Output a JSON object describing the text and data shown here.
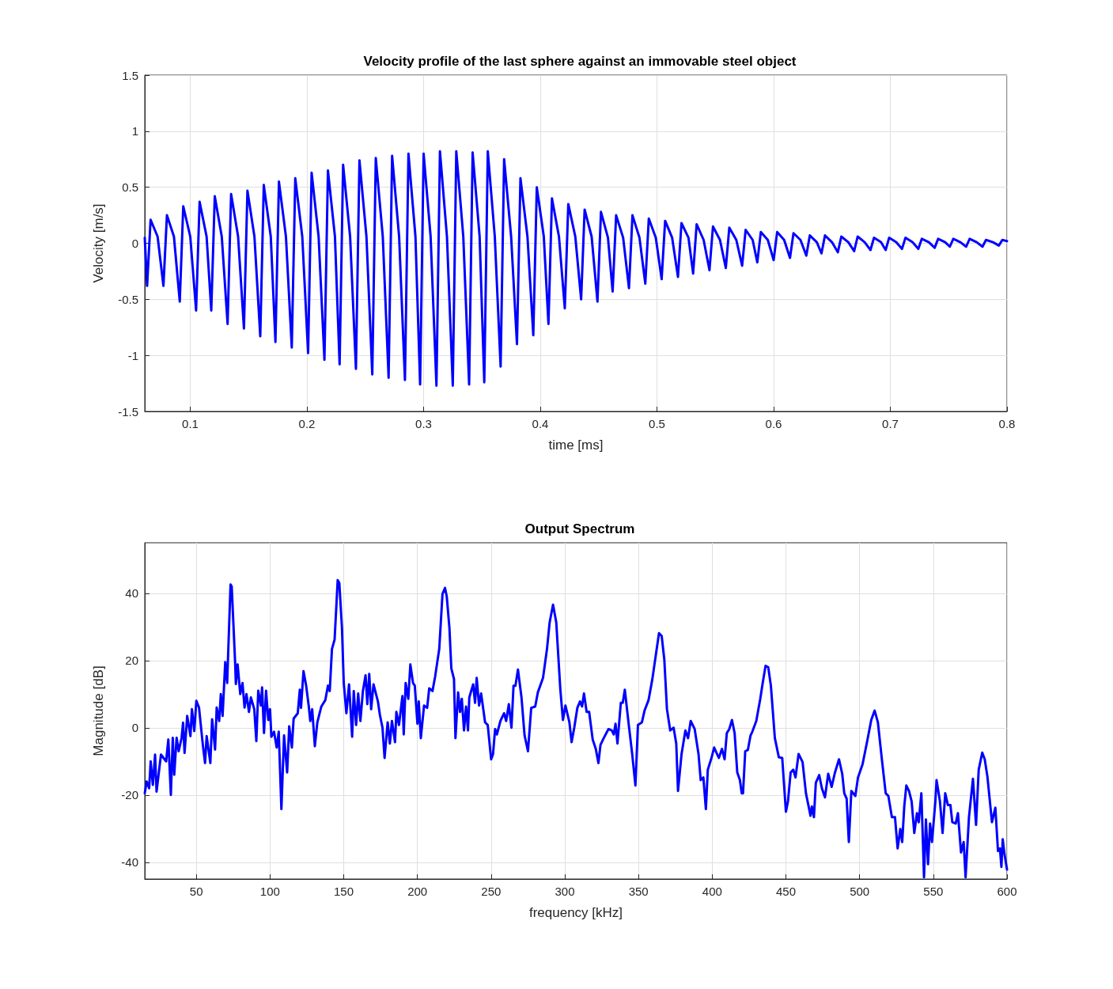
{
  "chart_data": [
    {
      "type": "line",
      "title": "Velocity profile of the last sphere against an immovable steel object",
      "xlabel": "time [ms]",
      "ylabel": "Velocity [m/s]",
      "x": [
        0.061,
        0.063,
        0.066,
        0.072,
        0.077,
        0.08,
        0.086,
        0.091,
        0.094,
        0.1,
        0.105,
        0.108,
        0.114,
        0.118,
        0.121,
        0.127,
        0.132,
        0.135,
        0.141,
        0.146,
        0.149,
        0.155,
        0.16,
        0.163,
        0.169,
        0.173,
        0.176,
        0.182,
        0.187,
        0.19,
        0.196,
        0.201,
        0.204,
        0.21,
        0.215,
        0.218,
        0.224,
        0.228,
        0.231,
        0.237,
        0.242,
        0.245,
        0.251,
        0.256,
        0.259,
        0.265,
        0.27,
        0.273,
        0.279,
        0.284,
        0.287,
        0.293,
        0.297,
        0.3,
        0.306,
        0.311,
        0.314,
        0.32,
        0.325,
        0.328,
        0.334,
        0.339,
        0.342,
        0.348,
        0.352,
        0.355,
        0.361,
        0.366,
        0.369,
        0.375,
        0.38,
        0.383,
        0.389,
        0.394,
        0.397,
        0.403,
        0.407,
        0.41,
        0.416,
        0.421,
        0.424,
        0.43,
        0.435,
        0.438,
        0.444,
        0.449,
        0.452,
        0.458,
        0.462,
        0.465,
        0.471,
        0.476,
        0.479,
        0.485,
        0.49,
        0.493,
        0.499,
        0.504,
        0.507,
        0.513,
        0.518,
        0.521,
        0.527,
        0.531,
        0.534,
        0.54,
        0.545,
        0.548,
        0.554,
        0.559,
        0.562,
        0.568,
        0.573,
        0.576,
        0.582,
        0.586,
        0.589,
        0.595,
        0.6,
        0.603,
        0.609,
        0.614,
        0.617,
        0.623,
        0.628,
        0.631,
        0.637,
        0.641,
        0.644,
        0.65,
        0.655,
        0.658,
        0.664,
        0.669,
        0.672,
        0.678,
        0.683,
        0.686,
        0.692,
        0.696,
        0.699,
        0.705,
        0.71,
        0.713,
        0.719,
        0.724,
        0.727,
        0.733,
        0.738,
        0.741,
        0.747,
        0.751,
        0.754,
        0.76,
        0.765,
        0.768,
        0.774,
        0.779,
        0.782,
        0.788,
        0.793,
        0.796,
        0.8
      ],
      "series": [
        {
          "color": "#0000ff",
          "values": [
            0.05,
            -0.38,
            0.21,
            0.06,
            -0.38,
            0.25,
            0.06,
            -0.52,
            0.33,
            0.06,
            -0.6,
            0.37,
            0.06,
            -0.6,
            0.42,
            0.06,
            -0.72,
            0.44,
            0.06,
            -0.76,
            0.47,
            0.06,
            -0.83,
            0.52,
            0.06,
            -0.88,
            0.55,
            0.06,
            -0.93,
            0.58,
            0.06,
            -0.98,
            0.63,
            0.06,
            -1.04,
            0.65,
            0.06,
            -1.08,
            0.7,
            0.06,
            -1.12,
            0.74,
            0.06,
            -1.17,
            0.76,
            0.06,
            -1.2,
            0.78,
            0.06,
            -1.22,
            0.8,
            0.06,
            -1.26,
            0.8,
            0.06,
            -1.27,
            0.82,
            0.06,
            -1.27,
            0.82,
            0.06,
            -1.26,
            0.81,
            0.06,
            -1.24,
            0.82,
            0.06,
            -1.1,
            0.75,
            0.06,
            -0.9,
            0.58,
            0.06,
            -0.82,
            0.5,
            0.06,
            -0.72,
            0.4,
            0.06,
            -0.58,
            0.35,
            0.06,
            -0.5,
            0.3,
            0.06,
            -0.52,
            0.28,
            0.05,
            -0.43,
            0.25,
            0.05,
            -0.4,
            0.25,
            0.05,
            -0.36,
            0.22,
            0.05,
            -0.32,
            0.2,
            0.05,
            -0.3,
            0.18,
            0.05,
            -0.27,
            0.17,
            0.03,
            -0.24,
            0.15,
            0.03,
            -0.22,
            0.14,
            0.03,
            -0.2,
            0.12,
            0.03,
            -0.17,
            0.1,
            0.03,
            -0.15,
            0.1,
            0.03,
            -0.13,
            0.09,
            0.03,
            -0.11,
            0.07,
            0.01,
            -0.09,
            0.07,
            0.01,
            -0.08,
            0.06,
            0.01,
            -0.07,
            0.06,
            0.01,
            -0.06,
            0.05,
            0.01,
            -0.06,
            0.05,
            0.01,
            -0.05,
            0.05,
            0.01,
            -0.05,
            0.04,
            0.01,
            -0.04,
            0.04,
            0.01,
            -0.03,
            0.04,
            0.01,
            -0.03,
            0.04,
            0.01,
            -0.03,
            0.03,
            0.01,
            -0.02,
            0.03,
            0.02
          ]
        }
      ],
      "xlim": [
        0.061,
        0.8
      ],
      "xticks": [
        0.1,
        0.2,
        0.3,
        0.4,
        0.5,
        0.6,
        0.7,
        0.8
      ],
      "ylim": [
        -1.5,
        1.5
      ],
      "yticks": [
        -1.5,
        -1,
        -0.5,
        0,
        0.5,
        1,
        1.5
      ],
      "grid": true,
      "marker": "none",
      "line_style": "solid"
    },
    {
      "type": "line",
      "title": "Output Spectrum",
      "xlabel": "frequency [kHz]",
      "ylabel": "Magnitude [dB]",
      "x": [
        15,
        16.3,
        18,
        19,
        20.5,
        22,
        23,
        26,
        29.5,
        31,
        32.7,
        34,
        35,
        36.6,
        38,
        40,
        41,
        42,
        43.8,
        46,
        47,
        48.6,
        50,
        51.8,
        54.5,
        55.9,
        57,
        59.5,
        60.7,
        62.7,
        63.8,
        65.5,
        66.6,
        67.8,
        69.6,
        70.9,
        73.2,
        74,
        76.3,
        76.8,
        78,
        79.8,
        81.3,
        82.7,
        84,
        85.7,
        87,
        89.3,
        90.7,
        92,
        93.8,
        94.6,
        95.9,
        97.3,
        98.8,
        100,
        100.9,
        102.7,
        104.5,
        105.9,
        107.7,
        109.5,
        111.6,
        113,
        114.8,
        116,
        118.8,
        120.2,
        121,
        122.7,
        124.5,
        126.3,
        127.3,
        128.6,
        130.4,
        132.1,
        134.8,
        137.5,
        139.3,
        140.5,
        142,
        143.8,
        145.9,
        147,
        148.8,
        150,
        151.8,
        153.6,
        155.7,
        156.8,
        158.4,
        159.8,
        161.3,
        163,
        164.8,
        166,
        167.3,
        168.6,
        170.2,
        173.2,
        174.5,
        176.3,
        177.7,
        179.8,
        181.3,
        182.7,
        184.8,
        185.7,
        187.5,
        189.8,
        190.7,
        192,
        193.8,
        195.2,
        197,
        198.2,
        200,
        200.9,
        202.3,
        204.5,
        206.6,
        208,
        210.2,
        212,
        214.8,
        217,
        218.7,
        219.9,
        221.7,
        223,
        224.8,
        225.8,
        227.6,
        228.9,
        230.1,
        231.6,
        233,
        234.3,
        235.2,
        237.8,
        239.1,
        240.2,
        241.8,
        243.2,
        245.9,
        247.7,
        250,
        251.3,
        252.7,
        253.9,
        256.3,
        258.8,
        260.2,
        262,
        263.8,
        265.2,
        266.5,
        268.2,
        270.6,
        272.7,
        275,
        277.2,
        279.9,
        281.7,
        285.2,
        287.9,
        289.7,
        292,
        294.2,
        296.9,
        298.7,
        300.4,
        303.1,
        304.6,
        306.4,
        308.5,
        310.3,
        311.7,
        313,
        314.8,
        316.5,
        318.9,
        321,
        322.8,
        324.2,
        326.4,
        329.6,
        331.8,
        333.2,
        334.4,
        335.7,
        338,
        339.3,
        340.7,
        343.4,
        345.7,
        347.9,
        349.6,
        352.3,
        354.1,
        356.8,
        359.4,
        362.1,
        363.9,
        365.7,
        367.5,
        369.3,
        371.5,
        373.8,
        375.6,
        376.8,
        379.2,
        381.8,
        383.6,
        385.4,
        388.1,
        390.7,
        392.2,
        394,
        395.7,
        397,
        399.5,
        401.3,
        404.5,
        406.6,
        408.4,
        409.9,
        411.6,
        413.4,
        415.2,
        417,
        418.8,
        420,
        420.9,
        422.4,
        424.2,
        426,
        427.2,
        429.9,
        432.6,
        434.4,
        436.2,
        438,
        439.8,
        442.5,
        445.2,
        447.5,
        450,
        451.4,
        453.2,
        455,
        456.5,
        458.6,
        461.3,
        463.6,
        466.7,
        467.6,
        469,
        470.3,
        472.6,
        474.4,
        476.5,
        478.7,
        481,
        483.3,
        486,
        488.2,
        489.6,
        491.2,
        492.7,
        494.4,
        497.1,
        498.9,
        502,
        505.2,
        507.9,
        510.2,
        512.4,
        515.1,
        517.7,
        519.5,
        521.9,
        524,
        525.8,
        527.6,
        528.9,
        530.3,
        531.7,
        533.5,
        535.3,
        537.1,
        538.9,
        540.1,
        541.9,
        543.7,
        545,
        546.4,
        547.8,
        549.1,
        551.4,
        552.2,
        554.5,
        556.3,
        558.1,
        559.9,
        561.6,
        562.9,
        565.2,
        566.7,
        568.8,
        570.6,
        571.9,
        574.2,
        576.9,
        579,
        580.8,
        583.2,
        584.9,
        586.7,
        589.8,
        592.1,
        593.9,
        595.2,
        596.2,
        597.1,
        598.4,
        600
      ],
      "series": [
        {
          "color": "#0000ff",
          "values": [
            -19.5,
            -16,
            -18,
            -10,
            -17,
            -8,
            -19,
            -8,
            -10,
            -3.5,
            -20,
            -3,
            -14,
            -3,
            -7,
            -3,
            1.5,
            -7.5,
            3.5,
            -2.5,
            5.5,
            -1,
            8,
            6,
            -5.5,
            -10.5,
            -2.5,
            -10.5,
            2.5,
            -6.5,
            6,
            2,
            10,
            3.5,
            19.5,
            13.3,
            42.6,
            42,
            19.5,
            13,
            18.8,
            10,
            13.3,
            6,
            10,
            4.7,
            9,
            5.5,
            -4,
            11,
            6.6,
            12,
            -1.6,
            11,
            2.3,
            5.5,
            -2.7,
            -1.2,
            -5.9,
            -1.2,
            -24.2,
            -2.3,
            -13.3,
            0.4,
            -5.9,
            2.7,
            4.3,
            11.3,
            5.9,
            16.8,
            12.5,
            6.3,
            2,
            5.5,
            -5.5,
            1.6,
            6.3,
            8.2,
            12.5,
            10.9,
            23.4,
            26.2,
            43.9,
            43,
            29.7,
            13.3,
            4.3,
            12.9,
            -2.7,
            10.9,
            0.8,
            10.2,
            2,
            10.9,
            15.6,
            7,
            16,
            5.5,
            12.9,
            7.8,
            3.9,
            0,
            -9,
            1.6,
            -4.7,
            2,
            -4.3,
            4.7,
            0.8,
            9.4,
            -2,
            13.3,
            8.6,
            18.8,
            13.3,
            12.5,
            1.2,
            7.8,
            -3.1,
            6.6,
            5.9,
            11.7,
            10.9,
            15.2,
            23.4,
            39.8,
            41.6,
            39,
            29.7,
            17.6,
            14.5,
            -3.1,
            10.5,
            4.7,
            8.6,
            -0.8,
            6.3,
            -0.8,
            9,
            12.9,
            7.4,
            14.8,
            6.6,
            10.2,
            1.6,
            0.8,
            -9.4,
            -7.8,
            -0.4,
            -2,
            2,
            4.3,
            2,
            7,
            0,
            12.5,
            12.5,
            17.3,
            9,
            -2.3,
            -7,
            5.9,
            6.3,
            10.5,
            14.8,
            23.4,
            31.3,
            36.6,
            31.3,
            11.7,
            2.3,
            6.6,
            1.6,
            -4.3,
            0,
            5.9,
            7.8,
            6.3,
            10.2,
            4.7,
            4.7,
            -3.5,
            -6.3,
            -10.5,
            -5.1,
            -3.1,
            -0.4,
            -0.8,
            -2,
            1.2,
            -4.7,
            7.4,
            7.4,
            11.3,
            0.8,
            -7.8,
            -17.2,
            0.8,
            1.6,
            5.1,
            8.2,
            14.5,
            22.7,
            28.1,
            27.3,
            20.3,
            5.5,
            -0.8,
            0,
            -4.7,
            -18.8,
            -7.8,
            -0.8,
            -3.1,
            2,
            -0.4,
            -7.8,
            -15.6,
            -14.8,
            -24.2,
            -12.5,
            -9,
            -5.9,
            -9,
            -6.3,
            -9.4,
            -1.6,
            -0.4,
            2.3,
            -1.6,
            -13.3,
            -15.6,
            -19.5,
            -19.5,
            -7,
            -6.6,
            -2.3,
            -1.2,
            2,
            8.6,
            13.7,
            18.4,
            18,
            12.5,
            -3.1,
            -8.8,
            -9,
            -25,
            -21.9,
            -13.3,
            -12.5,
            -14.8,
            -7.8,
            -10.2,
            -19.5,
            -26.2,
            -23.4,
            -26.6,
            -16.4,
            -14.1,
            -18,
            -20.7,
            -13.7,
            -17.6,
            -13.3,
            -9.4,
            -13.7,
            -19.5,
            -21.1,
            -34,
            -18.8,
            -20.3,
            -14.8,
            -10.9,
            -3.9,
            2.3,
            5.1,
            1.6,
            -9.4,
            -19.5,
            -20.3,
            -26.6,
            -26.6,
            -35.9,
            -30.1,
            -34,
            -23.4,
            -17.2,
            -18.8,
            -21.9,
            -31.3,
            -25.4,
            -28.1,
            -19.5,
            -44.5,
            -27.3,
            -40.6,
            -28.5,
            -34,
            -21.9,
            -15.6,
            -21.9,
            -31.3,
            -19.5,
            -23,
            -23,
            -28.1,
            -28.5,
            -25.4,
            -37.1,
            -34,
            -44.5,
            -26.6,
            -15.2,
            -28.9,
            -12.5,
            -7.4,
            -9.4,
            -14.5,
            -28.1,
            -23.8,
            -36.7,
            -35.9,
            -41.4,
            -33.2,
            -37.9,
            -42.2
          ]
        }
      ],
      "xlim": [
        15,
        600
      ],
      "xticks": [
        50,
        100,
        150,
        200,
        250,
        300,
        350,
        400,
        450,
        500,
        550,
        600
      ],
      "ylim": [
        -45,
        55
      ],
      "yticks": [
        -40,
        -20,
        0,
        20,
        40
      ],
      "grid": true,
      "marker": "none",
      "line_style": "solid"
    }
  ]
}
